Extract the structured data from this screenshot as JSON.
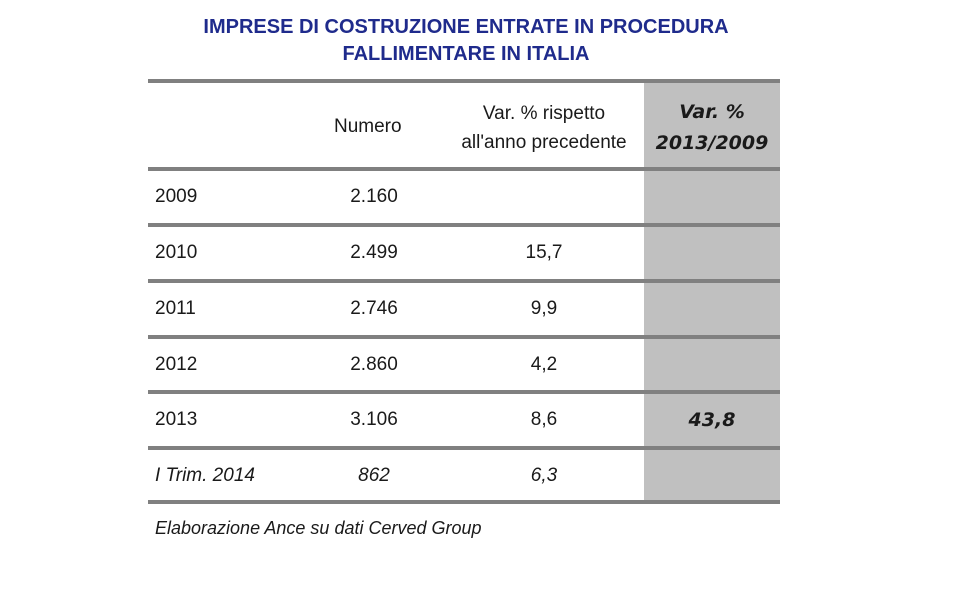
{
  "chart_data": {
    "type": "table",
    "title_line1": "IMPRESE DI COSTRUZIONE ENTRATE IN PROCEDURA",
    "title_line2": "FALLIMENTARE IN ITALIA",
    "columns": {
      "numero": "Numero",
      "var_line1": "Var. % rispetto",
      "var_line2": "all'anno precedente",
      "tot_line1": "Var. %",
      "tot_line2": "2013/2009"
    },
    "rows": [
      {
        "year": "2009",
        "numero": "2.160",
        "var": "",
        "tot": ""
      },
      {
        "year": "2010",
        "numero": "2.499",
        "var": "15,7",
        "tot": ""
      },
      {
        "year": "2011",
        "numero": "2.746",
        "var": "9,9",
        "tot": ""
      },
      {
        "year": "2012",
        "numero": "2.860",
        "var": "4,2",
        "tot": ""
      },
      {
        "year": "2013",
        "numero": "3.106",
        "var": "8,6",
        "tot": "43,8"
      },
      {
        "year": "I Trim. 2014",
        "numero": "862",
        "var": "6,3",
        "tot": ""
      }
    ],
    "source": "Elaborazione Ance su dati Cerved Group",
    "colors": {
      "title": "#1f2b8c",
      "highlight_column": "#c0c0c0",
      "rules": "#808080"
    }
  }
}
